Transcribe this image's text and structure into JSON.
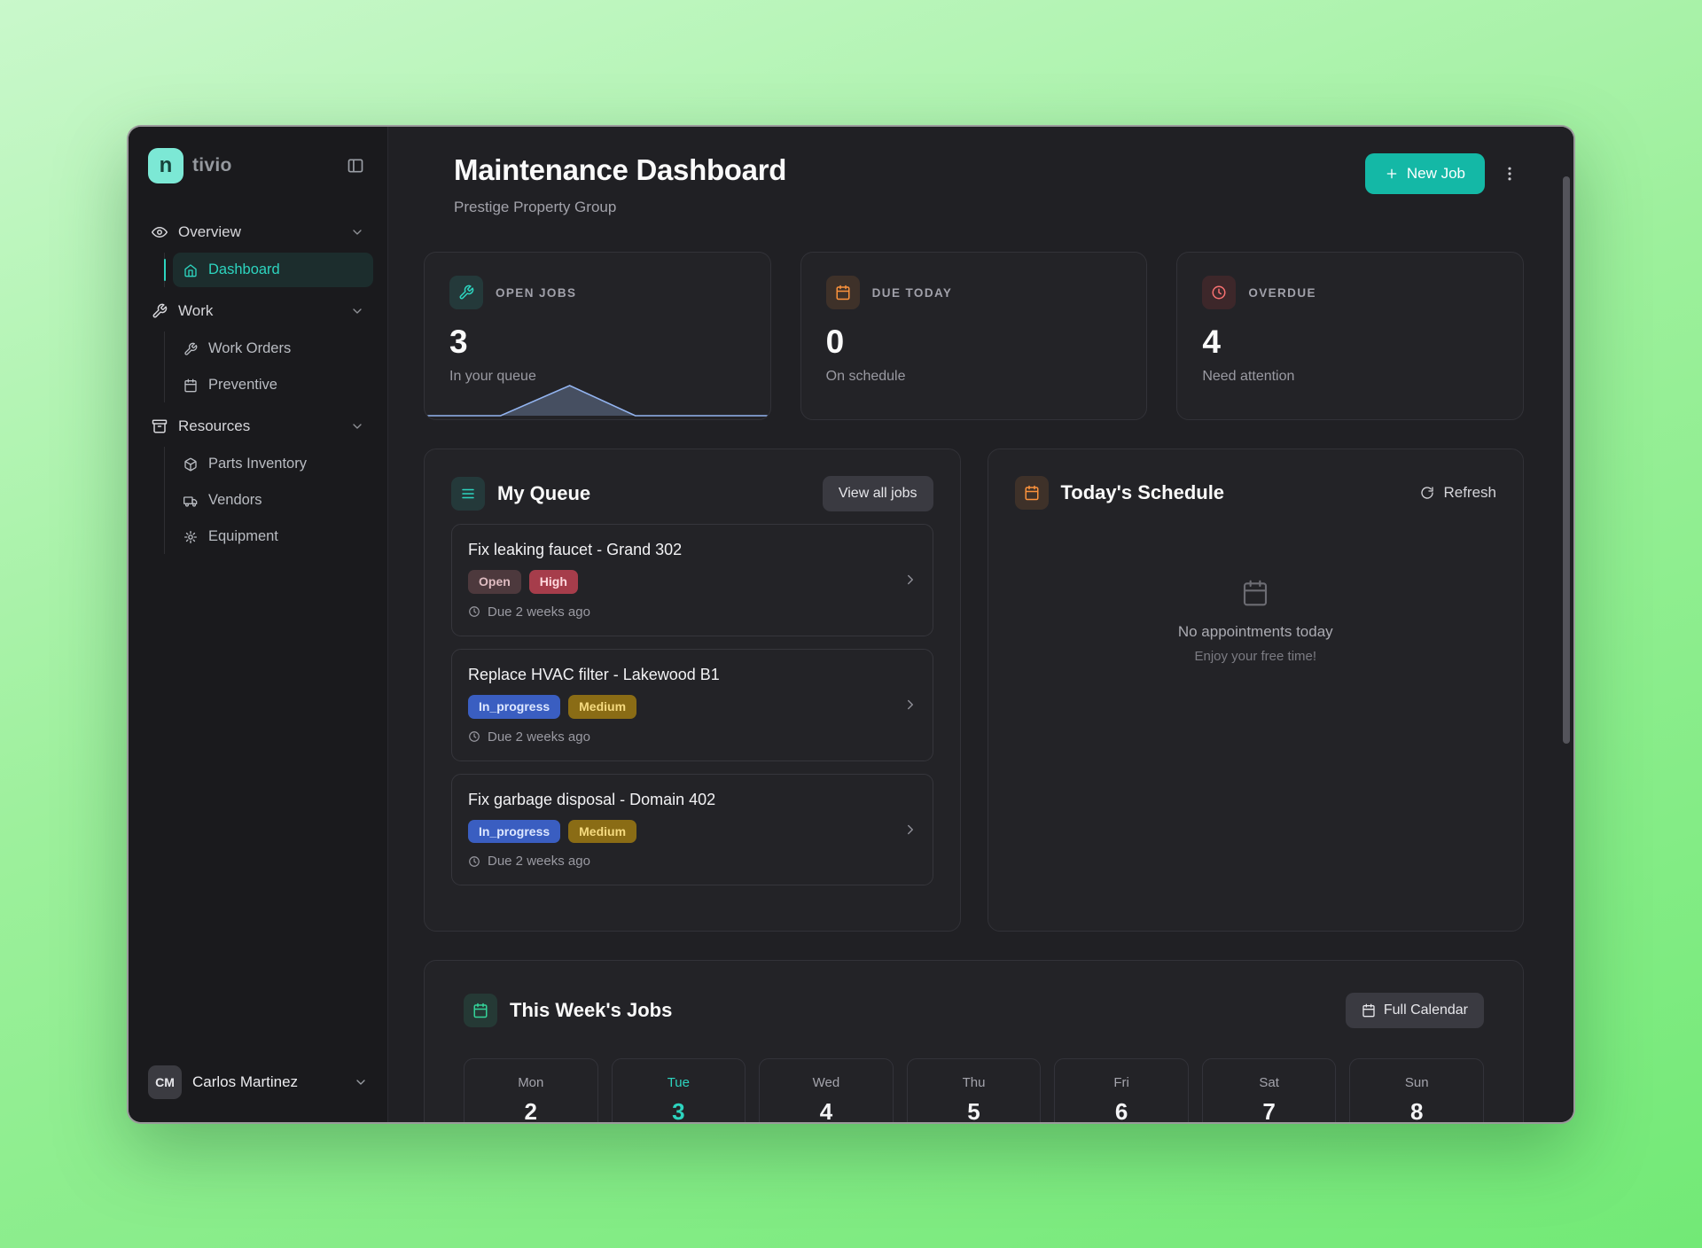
{
  "brand": {
    "icon_letter": "n",
    "text": "tivio"
  },
  "sidebar": {
    "sections": [
      {
        "label": "Overview",
        "items": [
          {
            "label": "Dashboard",
            "active": true
          }
        ]
      },
      {
        "label": "Work",
        "items": [
          {
            "label": "Work Orders"
          },
          {
            "label": "Preventive"
          }
        ]
      },
      {
        "label": "Resources",
        "items": [
          {
            "label": "Parts Inventory"
          },
          {
            "label": "Vendors"
          },
          {
            "label": "Equipment"
          }
        ]
      }
    ],
    "user": {
      "initials": "CM",
      "name": "Carlos Martinez"
    }
  },
  "header": {
    "title": "Maintenance Dashboard",
    "subtitle": "Prestige Property Group",
    "new_job": "New Job"
  },
  "stats": [
    {
      "label": "OPEN JOBS",
      "value": "3",
      "caption": "In your queue",
      "icon": "wrench-icon",
      "accent": "#2dd4bf",
      "sparkline": [
        [
          0,
          0
        ],
        [
          22,
          0
        ],
        [
          42,
          100
        ],
        [
          61,
          0
        ],
        [
          100,
          0
        ]
      ],
      "spark_stroke": "#93b4f0"
    },
    {
      "label": "DUE TODAY",
      "value": "0",
      "caption": "On schedule",
      "icon": "calendar-icon",
      "accent": "#fb923c"
    },
    {
      "label": "OVERDUE",
      "value": "4",
      "caption": "Need attention",
      "icon": "clock-icon",
      "accent": "#ef4444"
    }
  ],
  "queue": {
    "title": "My Queue",
    "view_all": "View all jobs",
    "jobs": [
      {
        "title": "Fix leaking faucet - Grand 302",
        "status": "Open",
        "priority": "High",
        "due": "Due 2 weeks ago"
      },
      {
        "title": "Replace HVAC filter - Lakewood B1",
        "status": "In_progress",
        "priority": "Medium",
        "due": "Due 2 weeks ago"
      },
      {
        "title": "Fix garbage disposal - Domain 402",
        "status": "In_progress",
        "priority": "Medium",
        "due": "Due 2 weeks ago"
      }
    ]
  },
  "schedule": {
    "title": "Today's Schedule",
    "refresh": "Refresh",
    "empty_title": "No appointments today",
    "empty_caption": "Enjoy your free time!"
  },
  "week": {
    "title": "This Week's Jobs",
    "full_calendar": "Full Calendar",
    "days": [
      {
        "name": "Mon",
        "date": "2"
      },
      {
        "name": "Tue",
        "date": "3",
        "today": true
      },
      {
        "name": "Wed",
        "date": "4"
      },
      {
        "name": "Thu",
        "date": "5"
      },
      {
        "name": "Fri",
        "date": "6"
      },
      {
        "name": "Sat",
        "date": "7"
      },
      {
        "name": "Sun",
        "date": "8"
      }
    ]
  },
  "colors": {
    "accent_teal": "#2dd4bf",
    "accent_orange": "#fb923c",
    "accent_red": "#ef4444",
    "accent_green": "#34d399",
    "button_teal": "#14b8a6",
    "spark_line": "#93b4f0"
  }
}
